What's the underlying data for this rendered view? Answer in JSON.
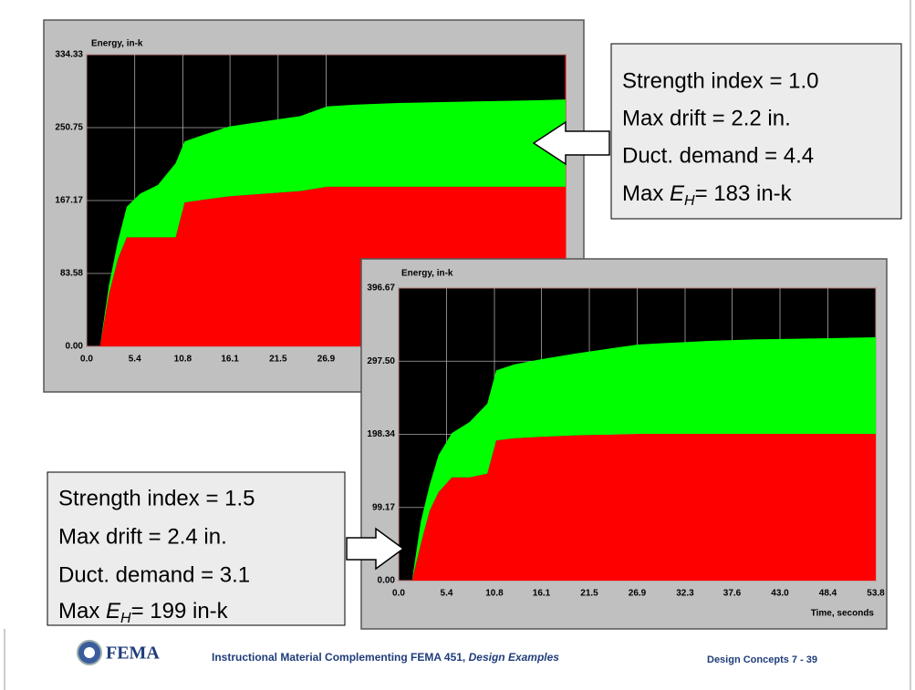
{
  "chart_data": [
    {
      "type": "area",
      "y_label": "Energy, in-k",
      "x": [
        0,
        1.5,
        2.5,
        3.5,
        4.5,
        6,
        8,
        10,
        11,
        13,
        16,
        20,
        24,
        27,
        30,
        35,
        40,
        45,
        50,
        53.8
      ],
      "series": [
        {
          "color": "#ff0000",
          "values": [
            0,
            0,
            60,
            100,
            125,
            125,
            125,
            125,
            165,
            168,
            172,
            175,
            178,
            183,
            183,
            183,
            183,
            183,
            183,
            183
          ]
        },
        {
          "color": "#00ff00",
          "values": [
            0,
            0,
            10,
            20,
            35,
            50,
            60,
            85,
            70,
            74,
            80,
            83,
            86,
            92,
            94,
            96,
            97,
            98,
            99,
            100
          ]
        }
      ],
      "xlim": [
        0,
        53.8
      ],
      "xticks": [
        {
          "value": 0,
          "label": "0.0"
        },
        5.4,
        10.8,
        16.1,
        21.5,
        26.9
      ],
      "ylim": [
        0,
        334.33
      ],
      "yticks": [
        {
          "value": 0,
          "label": "0.00"
        },
        83.58,
        167.17,
        250.75,
        334.33
      ],
      "grid": true,
      "annotation": {
        "lines": [
          "Strength index = 1.0",
          "Max drift = 2.2 in.",
          "Duct. demand = 4.4"
        ],
        "eh": {
          "prefix": "Max ",
          "symbol": "E",
          "subscript": "H",
          "rest": "= 183 in-k"
        }
      }
    },
    {
      "type": "area",
      "y_label": "Energy, in-k",
      "x_label": "Time, seconds",
      "x": [
        0,
        1.5,
        2.5,
        3.5,
        4.5,
        6,
        8,
        10,
        11,
        13,
        16,
        20,
        24,
        27,
        30,
        35,
        40,
        45,
        50,
        53.8
      ],
      "series": [
        {
          "color": "#ff0000",
          "values": [
            0,
            0,
            50,
            95,
            120,
            140,
            140,
            145,
            190,
            193,
            195,
            197,
            198,
            199,
            199,
            199,
            199,
            199,
            199,
            199
          ]
        },
        {
          "color": "#00ff00",
          "values": [
            0,
            0,
            30,
            35,
            50,
            60,
            75,
            95,
            95,
            100,
            105,
            111,
            117,
            121,
            123,
            126,
            128,
            129,
            130,
            131
          ]
        }
      ],
      "xlim": [
        0,
        53.8
      ],
      "xticks": [
        {
          "value": 0,
          "label": "0.0"
        },
        5.4,
        10.8,
        16.1,
        21.5,
        26.9,
        32.3,
        37.6,
        {
          "value": 43,
          "label": "43.0"
        },
        48.4,
        53.8
      ],
      "ylim": [
        0,
        396.67
      ],
      "yticks": [
        {
          "value": 0,
          "label": "0.00"
        },
        99.17,
        198.34,
        {
          "value": 297.5,
          "label": "297.50"
        },
        396.67
      ],
      "grid": true,
      "annotation": {
        "lines": [
          "Strength index = 1.5",
          "Max drift = 2.4 in.",
          "Duct. demand = 3.1"
        ],
        "eh": {
          "prefix": "Max ",
          "symbol": "E",
          "subscript": "H",
          "rest": "= 199 in-k"
        }
      }
    }
  ],
  "footer": {
    "logo": "FEMA",
    "text": "Instructional Material Complementing FEMA 451, ",
    "text_italic": "Design Examples",
    "slide": "Design Concepts 7 - 39"
  }
}
